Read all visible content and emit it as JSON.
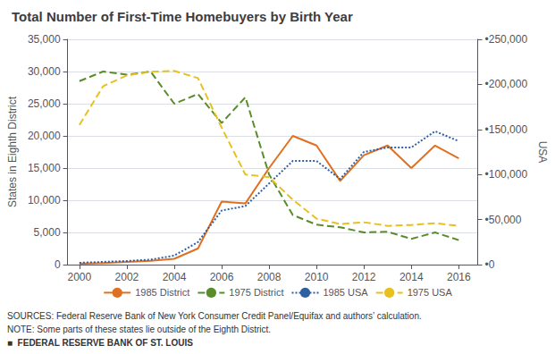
{
  "chart_data": {
    "type": "line",
    "title": "Total Number of First-Time Homebuyers by Birth Year",
    "ylabel": "States in Eighth District",
    "y2label": "USA",
    "x": [
      2000,
      2001,
      2002,
      2003,
      2004,
      2005,
      2006,
      2007,
      2008,
      2009,
      2010,
      2011,
      2012,
      2013,
      2014,
      2015,
      2016
    ],
    "xlim": [
      1999.5,
      2016.8
    ],
    "xticks": [
      2000,
      2002,
      2004,
      2006,
      2008,
      2010,
      2012,
      2014,
      2016
    ],
    "ylim": [
      0,
      35000
    ],
    "yticks": [
      0,
      {
        "value": 5000,
        "label": "5,000"
      },
      {
        "value": 10000,
        "label": "10,000"
      },
      {
        "value": 15000,
        "label": "15,000"
      },
      {
        "value": 20000,
        "label": "20,000"
      },
      {
        "value": 25000,
        "label": "25,000"
      },
      {
        "value": 30000,
        "label": "30,000"
      },
      {
        "value": 35000,
        "label": "35,000"
      }
    ],
    "y2lim": [
      0,
      250000
    ],
    "y2ticks": [
      {
        "value": 0,
        "label": "•0"
      },
      {
        "value": 50000,
        "label": "•50,000"
      },
      {
        "value": 100000,
        "label": "•100,000"
      },
      {
        "value": 150000,
        "label": "•150,000"
      },
      {
        "value": 200000,
        "label": "•200,000"
      },
      {
        "value": 250000,
        "label": "•250,000"
      }
    ],
    "grid": true,
    "legend": "bottom",
    "annotations": [
      "SOURCES: Federal Reserve Bank of New York Consumer Credit Panel/Equifax and authors’ calculation.",
      "NOTE: Some parts of these states lie outside of the Eighth District.",
      "■  FEDERAL RESERVE BANK OF ST. LOUIS"
    ],
    "series": [
      {
        "name": "1985 District",
        "color": "#E07020",
        "line_style": "solid",
        "values": [
          150,
          250,
          400,
          600,
          900,
          2500,
          9800,
          9500,
          15000,
          20000,
          18500,
          13000,
          17000,
          18500,
          15000,
          18500,
          16500
        ]
      },
      {
        "name": "1975 District",
        "color": "#5B8C2A",
        "line_style": "dashed",
        "values": [
          28500,
          30000,
          29500,
          30000,
          25000,
          26500,
          22000,
          26000,
          14000,
          7700,
          6200,
          5800,
          5000,
          5100,
          4000,
          5000,
          3800
        ]
      },
      {
        "name": "1985 USA",
        "color": "#2E5FA3",
        "line_style": "dotted",
        "axis": "y2",
        "values": [
          2000,
          3000,
          4000,
          5500,
          10000,
          25000,
          60000,
          65000,
          90000,
          115000,
          115000,
          95000,
          125000,
          130000,
          130000,
          148000,
          137000
        ]
      },
      {
        "name": "1975 USA",
        "color": "#E8C020",
        "line_style": "dashed",
        "axis": "y2",
        "values": [
          155000,
          198000,
          210000,
          214000,
          215000,
          207000,
          152000,
          100000,
          97000,
          72000,
          51000,
          45000,
          47000,
          43000,
          44000,
          46000,
          43000
        ]
      }
    ]
  }
}
